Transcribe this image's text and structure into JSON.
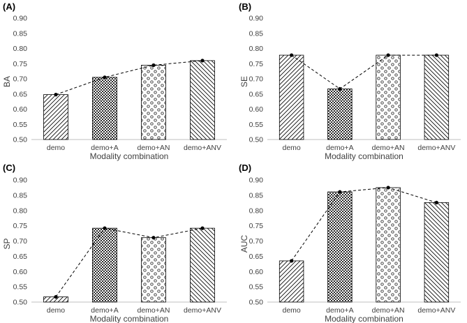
{
  "chart_data": [
    {
      "type": "bar",
      "panel": "(A)",
      "categories": [
        "demo",
        "demo+A",
        "demo+AN",
        "demo+ANV"
      ],
      "series": [
        {
          "values": [
            0.648,
            0.705,
            0.745,
            0.76
          ]
        }
      ],
      "line_overlay": true,
      "ylabel": "BA",
      "xlabel": "Modality combination",
      "ylim": [
        0.5,
        0.9
      ],
      "yticks": [
        "0.50",
        "0.55",
        "0.60",
        "0.65",
        "0.70",
        "0.75",
        "0.80",
        "0.85",
        "0.90"
      ],
      "patterns": [
        "diag-forward",
        "dense-dots",
        "circles",
        "diag-back"
      ]
    },
    {
      "type": "bar",
      "panel": "(B)",
      "categories": [
        "demo",
        "demo+A",
        "demo+AN",
        "demo+ANV"
      ],
      "series": [
        {
          "values": [
            0.778,
            0.667,
            0.778,
            0.778
          ]
        }
      ],
      "line_overlay": true,
      "ylabel": "SE",
      "xlabel": "Modality combination",
      "ylim": [
        0.5,
        0.9
      ],
      "yticks": [
        "0.50",
        "0.55",
        "0.60",
        "0.65",
        "0.70",
        "0.75",
        "0.80",
        "0.85",
        "0.90"
      ],
      "patterns": [
        "diag-forward",
        "dense-dots",
        "circles",
        "diag-back"
      ]
    },
    {
      "type": "bar",
      "panel": "(C)",
      "categories": [
        "demo",
        "demo+A",
        "demo+AN",
        "demo+ANV"
      ],
      "series": [
        {
          "values": [
            0.517,
            0.742,
            0.711,
            0.742
          ]
        }
      ],
      "line_overlay": true,
      "ylabel": "SP",
      "xlabel": "Modality combination",
      "ylim": [
        0.5,
        0.9
      ],
      "yticks": [
        "0.50",
        "0.55",
        "0.60",
        "0.65",
        "0.70",
        "0.75",
        "0.80",
        "0.85",
        "0.90"
      ],
      "patterns": [
        "diag-forward",
        "dense-dots",
        "circles",
        "diag-back"
      ]
    },
    {
      "type": "bar",
      "panel": "(D)",
      "categories": [
        "demo",
        "demo+A",
        "demo+AN",
        "demo+ANV"
      ],
      "series": [
        {
          "values": [
            0.635,
            0.861,
            0.875,
            0.826
          ]
        }
      ],
      "line_overlay": true,
      "ylabel": "AUC",
      "xlabel": "Modality combination",
      "ylim": [
        0.5,
        0.9
      ],
      "yticks": [
        "0.50",
        "0.55",
        "0.60",
        "0.65",
        "0.70",
        "0.75",
        "0.80",
        "0.85",
        "0.90"
      ],
      "patterns": [
        "diag-forward",
        "dense-dots",
        "circles",
        "diag-back"
      ]
    }
  ],
  "colors": {
    "bar_stroke": "#000000",
    "axis": "#404040",
    "text": "#404040",
    "line": "#000000",
    "grid_axis": "#bfbfbf"
  }
}
